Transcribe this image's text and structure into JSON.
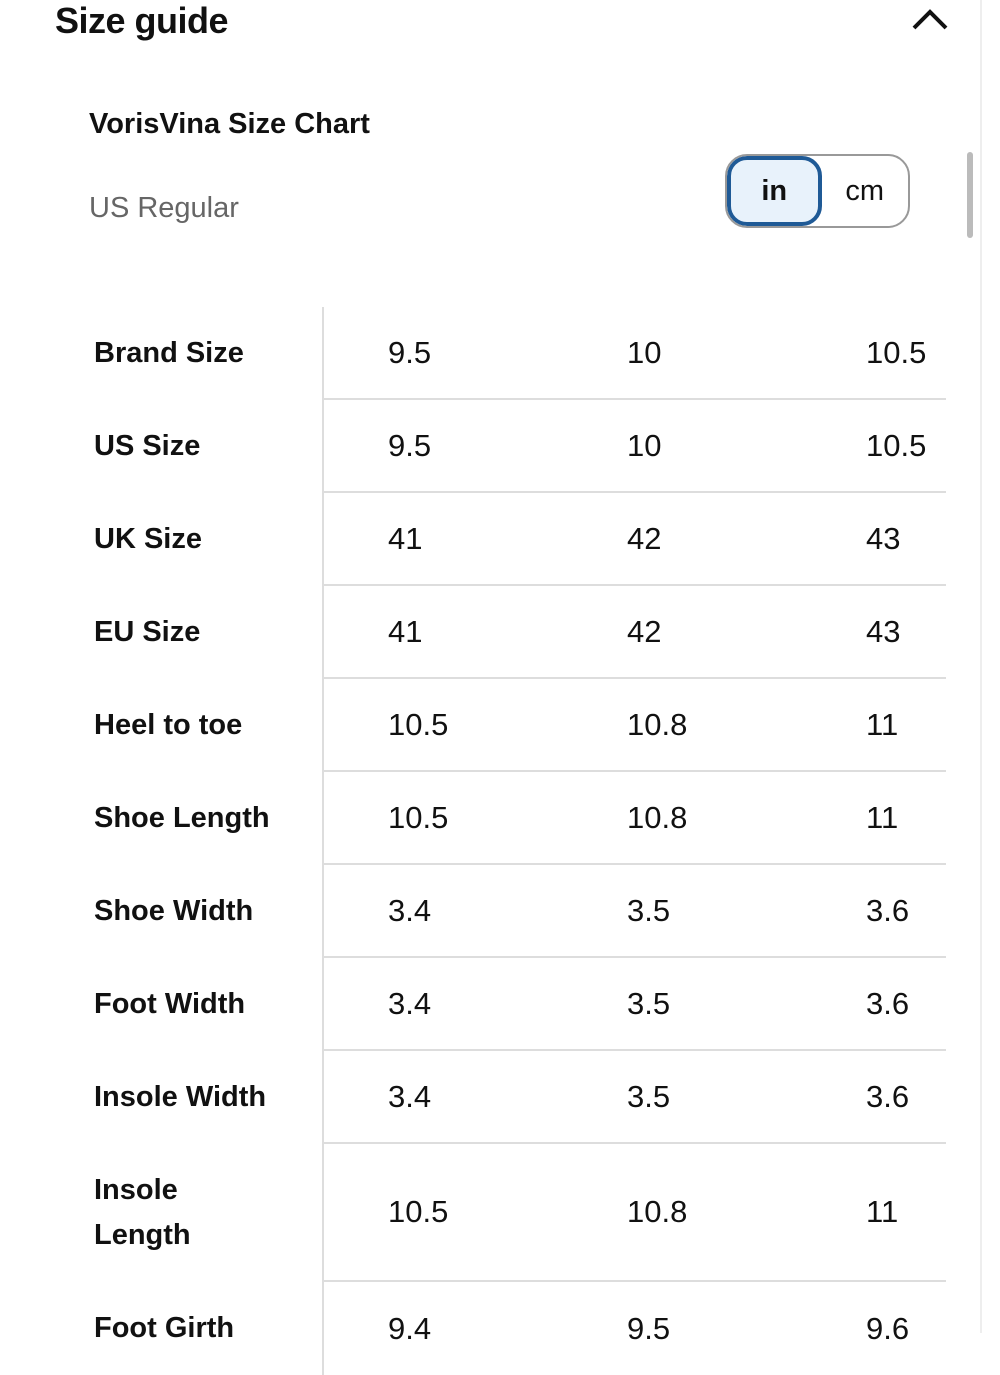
{
  "header": {
    "title": "Size guide"
  },
  "chart": {
    "title": "VorisVina Size Chart",
    "region": "US Regular"
  },
  "units": {
    "options": [
      "in",
      "cm"
    ],
    "selected": 0
  },
  "table": {
    "rows": [
      [
        "Brand Size",
        "9.5",
        "10",
        "10.5"
      ],
      [
        "US Size",
        "9.5",
        "10",
        "10.5"
      ],
      [
        "UK Size",
        "41",
        "42",
        "43"
      ],
      [
        "EU Size",
        "41",
        "42",
        "43"
      ],
      [
        "Heel to toe",
        "10.5",
        "10.8",
        "11"
      ],
      [
        "Shoe Length",
        "10.5",
        "10.8",
        "11"
      ],
      [
        "Shoe Width",
        "3.4",
        "3.5",
        "3.6"
      ],
      [
        "Foot Width",
        "3.4",
        "3.5",
        "3.6"
      ],
      [
        "Insole Width",
        "3.4",
        "3.5",
        "3.6"
      ],
      [
        "Insole Length",
        "10.5",
        "10.8",
        "11"
      ],
      [
        "Foot Girth",
        "9.4",
        "9.5",
        "9.6"
      ]
    ]
  }
}
